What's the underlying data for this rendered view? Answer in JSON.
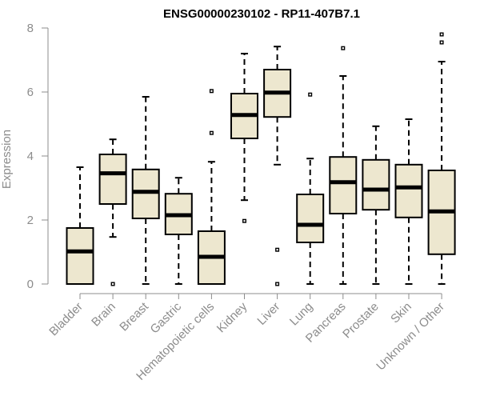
{
  "chart_data": {
    "type": "boxplot",
    "title": "ENSG00000230102 - RP11-407B7.1",
    "xlabel": "",
    "ylabel": "Expression",
    "ylim": [
      0,
      8
    ],
    "yticks": [
      0,
      2,
      4,
      6,
      8
    ],
    "grid": false,
    "legend": "none",
    "colors": {
      "box_fill": "#ede7cf",
      "box_stroke": "#000000",
      "axis": "#8c8c8c"
    },
    "categories": [
      "Bladder",
      "Brain",
      "Breast",
      "Gastric",
      "Hematopoietic cells",
      "Kidney",
      "Liver",
      "Lung",
      "Pancreas",
      "Prostate",
      "Skin",
      "Unknown / Other"
    ],
    "boxes": [
      {
        "category": "Bladder",
        "whisker_low": 0.0,
        "q1": 0.0,
        "median": 1.02,
        "q3": 1.75,
        "whisker_high": 3.65,
        "outliers": []
      },
      {
        "category": "Brain",
        "whisker_low": 1.47,
        "q1": 2.5,
        "median": 3.46,
        "q3": 4.05,
        "whisker_high": 4.52,
        "outliers": [
          0.0
        ]
      },
      {
        "category": "Breast",
        "whisker_low": 0.0,
        "q1": 2.05,
        "median": 2.88,
        "q3": 3.58,
        "whisker_high": 5.85,
        "outliers": []
      },
      {
        "category": "Gastric",
        "whisker_low": 0.0,
        "q1": 1.55,
        "median": 2.15,
        "q3": 2.82,
        "whisker_high": 3.32,
        "outliers": []
      },
      {
        "category": "Hematopoietic cells",
        "whisker_low": 0.0,
        "q1": 0.0,
        "median": 0.85,
        "q3": 1.65,
        "whisker_high": 3.82,
        "outliers": [
          4.72,
          6.03
        ]
      },
      {
        "category": "Kidney",
        "whisker_low": 2.62,
        "q1": 4.55,
        "median": 5.28,
        "q3": 5.95,
        "whisker_high": 7.2,
        "outliers": [
          1.97
        ]
      },
      {
        "category": "Liver",
        "whisker_low": 3.73,
        "q1": 5.22,
        "median": 5.98,
        "q3": 6.7,
        "whisker_high": 7.42,
        "outliers": [
          0.0,
          1.07
        ]
      },
      {
        "category": "Lung",
        "whisker_low": 0.0,
        "q1": 1.3,
        "median": 1.85,
        "q3": 2.8,
        "whisker_high": 3.92,
        "outliers": [
          5.92
        ]
      },
      {
        "category": "Pancreas",
        "whisker_low": 0.0,
        "q1": 2.2,
        "median": 3.18,
        "q3": 3.97,
        "whisker_high": 6.5,
        "outliers": [
          7.37
        ]
      },
      {
        "category": "Prostate",
        "whisker_low": 0.0,
        "q1": 2.32,
        "median": 2.95,
        "q3": 3.88,
        "whisker_high": 4.93,
        "outliers": []
      },
      {
        "category": "Skin",
        "whisker_low": 0.0,
        "q1": 2.08,
        "median": 3.02,
        "q3": 3.73,
        "whisker_high": 5.15,
        "outliers": []
      },
      {
        "category": "Unknown / Other",
        "whisker_low": 0.0,
        "q1": 0.93,
        "median": 2.27,
        "q3": 3.55,
        "whisker_high": 6.95,
        "outliers": [
          7.55,
          7.8
        ]
      }
    ]
  }
}
